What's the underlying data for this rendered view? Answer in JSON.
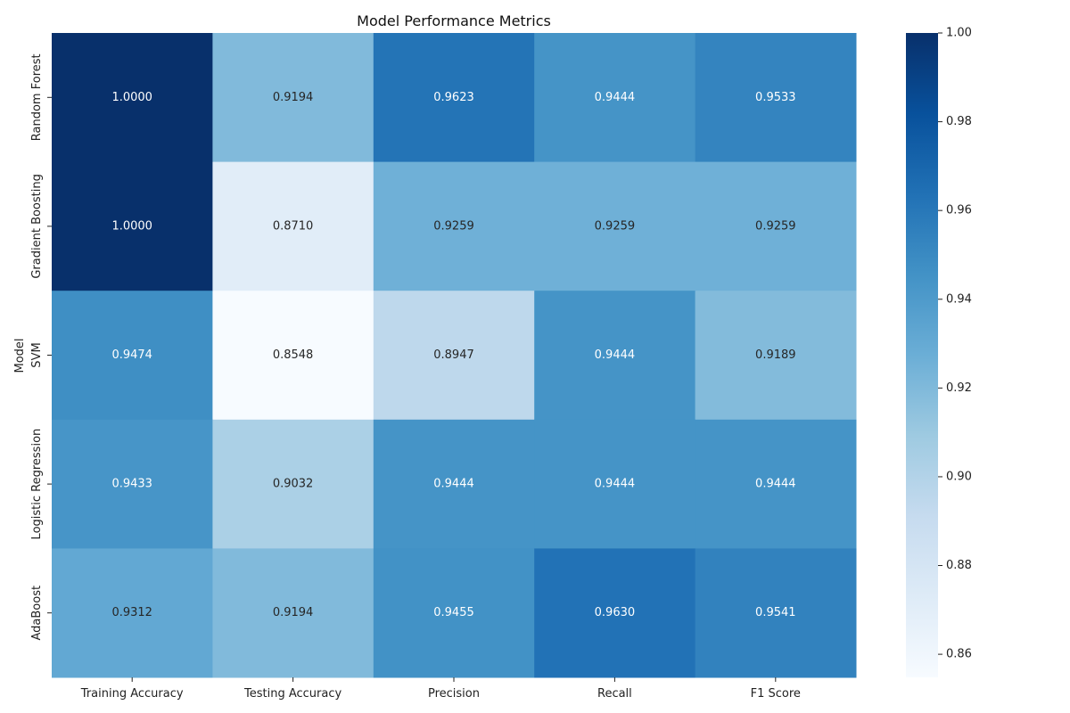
{
  "chart_data": {
    "type": "heatmap",
    "title": "Model Performance Metrics",
    "xlabel": "",
    "ylabel": "Model",
    "columns": [
      "Training Accuracy",
      "Testing Accuracy",
      "Precision",
      "Recall",
      "F1 Score"
    ],
    "rows": [
      "Random Forest",
      "Gradient Boosting",
      "SVM",
      "Logistic Regression",
      "AdaBoost"
    ],
    "values": [
      [
        1.0,
        0.9194,
        0.9623,
        0.9444,
        0.9533
      ],
      [
        1.0,
        0.871,
        0.9259,
        0.9259,
        0.9259
      ],
      [
        0.9474,
        0.8548,
        0.8947,
        0.9444,
        0.9189
      ],
      [
        0.9433,
        0.9032,
        0.9444,
        0.9444,
        0.9444
      ],
      [
        0.9312,
        0.9194,
        0.9455,
        0.963,
        0.9541
      ]
    ],
    "value_format": "0.0000",
    "colormap": "Blues",
    "color_range": [
      0.8548,
      1.0
    ],
    "colorbar_ticks": [
      "0.86",
      "0.88",
      "0.90",
      "0.92",
      "0.94",
      "0.96",
      "0.98",
      "1.00"
    ],
    "grid": false,
    "legend": "colorbar-right"
  }
}
